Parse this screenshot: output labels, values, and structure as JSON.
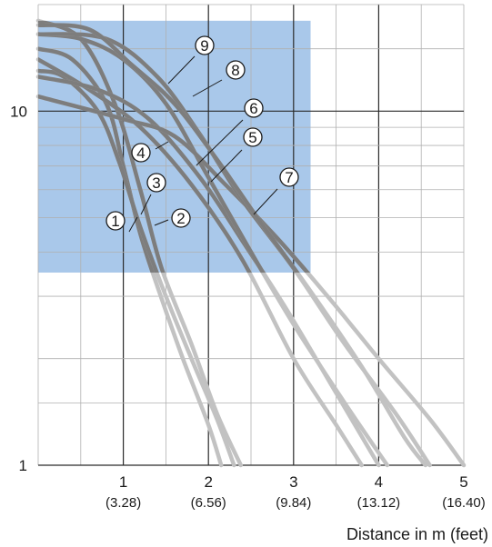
{
  "chart_data": {
    "type": "line",
    "xlabel": "Distance in m (feet)",
    "ylabel": "",
    "xlim": [
      0,
      5
    ],
    "ylim": [
      1,
      20
    ],
    "y_scale": "log",
    "grid": true,
    "x_ticks": [
      {
        "value": 1,
        "label": "1",
        "sublabel": "(3.28)"
      },
      {
        "value": 2,
        "label": "2",
        "sublabel": "(6.56)"
      },
      {
        "value": 3,
        "label": "3",
        "sublabel": "(9.84)"
      },
      {
        "value": 4,
        "label": "4",
        "sublabel": "(13.12)"
      },
      {
        "value": 5,
        "label": "5",
        "sublabel": "(16.40)"
      }
    ],
    "y_ticks": [
      {
        "value": 1,
        "label": "1"
      },
      {
        "value": 10,
        "label": "10"
      }
    ],
    "highlight_region": {
      "x": [
        0,
        3.2
      ],
      "y": [
        3.5,
        18
      ],
      "color": "#a9c8ea"
    },
    "colors": {
      "line_inside": "#7d7d7d",
      "line_outside": "#c2c2c2",
      "grid": "#b0b0b0",
      "grid_major": "#2a2a2a"
    },
    "series": [
      {
        "name": "1",
        "x": [
          0,
          0.4,
          0.8,
          1.0,
          1.2,
          1.4,
          1.7,
          2.0,
          2.15
        ],
        "y": [
          15,
          14,
          10.5,
          7.0,
          4.5,
          3.2,
          2.0,
          1.3,
          1.0
        ]
      },
      {
        "name": "2",
        "x": [
          0,
          0.5,
          0.9,
          1.2,
          1.45,
          1.8,
          2.1,
          2.38
        ],
        "y": [
          18,
          16,
          10.5,
          6.0,
          3.6,
          2.2,
          1.4,
          1.0
        ]
      },
      {
        "name": "3",
        "x": [
          0,
          0.3,
          0.7,
          0.95,
          1.2,
          1.5,
          1.8,
          2.1,
          2.3
        ],
        "y": [
          13,
          12.5,
          10,
          7.2,
          4.7,
          3.0,
          2.0,
          1.35,
          1.0
        ]
      },
      {
        "name": "4",
        "x": [
          0,
          0.6,
          1.2,
          1.8,
          2.4,
          3.0,
          3.5,
          3.8
        ],
        "y": [
          14,
          11.5,
          9.0,
          6.2,
          3.8,
          2.0,
          1.3,
          1.0
        ]
      },
      {
        "name": "5",
        "x": [
          0,
          0.7,
          1.3,
          1.9,
          2.4,
          2.9,
          3.5,
          4.0
        ],
        "y": [
          12.5,
          11.5,
          9.5,
          6.5,
          4.3,
          2.8,
          1.6,
          1.0
        ]
      },
      {
        "name": "6",
        "x": [
          0,
          0.5,
          1.0,
          1.5,
          2.0,
          2.5,
          3.0,
          3.6,
          4.1
        ],
        "y": [
          16.5,
          16,
          14,
          10.5,
          6.5,
          4.0,
          2.5,
          1.5,
          1.0
        ]
      },
      {
        "name": "7",
        "x": [
          0,
          1.0,
          1.6,
          2.2,
          2.8,
          3.4,
          4.0,
          4.6,
          5.0
        ],
        "y": [
          11,
          9.5,
          8.5,
          6.2,
          4.4,
          3.0,
          2.0,
          1.35,
          1.0
        ]
      },
      {
        "name": "8",
        "x": [
          0,
          0.8,
          1.4,
          1.9,
          2.4,
          3.0,
          3.6,
          4.2,
          4.6
        ],
        "y": [
          16.5,
          16,
          12.5,
          8.6,
          5.6,
          3.6,
          2.2,
          1.4,
          1.0
        ]
      },
      {
        "name": "9",
        "x": [
          0,
          0.6,
          1.1,
          1.6,
          2.1,
          2.6,
          3.2,
          3.8,
          4.3,
          4.55
        ],
        "y": [
          17.5,
          17,
          13.5,
          10.5,
          7.3,
          4.9,
          3.1,
          1.9,
          1.2,
          1.0
        ]
      }
    ]
  },
  "annotations": [
    {
      "label": "1"
    },
    {
      "label": "2"
    },
    {
      "label": "3"
    },
    {
      "label": "4"
    },
    {
      "label": "5"
    },
    {
      "label": "6"
    },
    {
      "label": "7"
    },
    {
      "label": "8"
    },
    {
      "label": "9"
    }
  ]
}
